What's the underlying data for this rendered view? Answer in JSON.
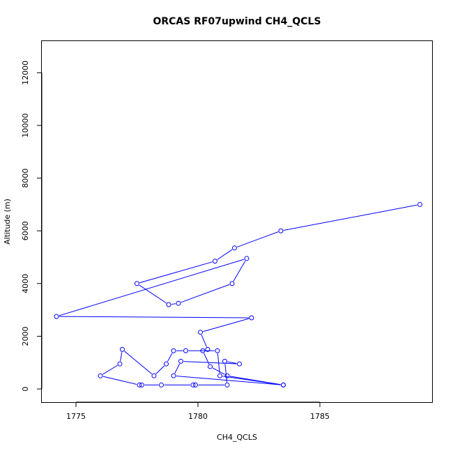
{
  "chart_data": {
    "type": "line",
    "title": "ORCAS RF07upwind CH4_QCLS",
    "xlabel": "CH4_QCLS",
    "ylabel": "Altitude (m)",
    "xlim": [
      1773.6,
      1789.6
    ],
    "ylim": [
      -500,
      13200
    ],
    "x_ticks": [
      1775,
      1780,
      1785
    ],
    "y_ticks": [
      0,
      2000,
      4000,
      6000,
      8000,
      10000,
      12000
    ],
    "series_color": "#0000ff",
    "markers": "open-circle",
    "points": [
      {
        "x": 1789.1,
        "y": 7000
      },
      {
        "x": 1783.4,
        "y": 6000
      },
      {
        "x": 1781.5,
        "y": 5350
      },
      {
        "x": 1780.7,
        "y": 4850
      },
      {
        "x": 1777.5,
        "y": 4000
      },
      {
        "x": 1778.8,
        "y": 3200
      },
      {
        "x": 1779.2,
        "y": 3250
      },
      {
        "x": 1781.4,
        "y": 4000
      },
      {
        "x": 1782.0,
        "y": 4950
      },
      {
        "x": 1774.2,
        "y": 2750
      },
      {
        "x": 1782.2,
        "y": 2700
      },
      {
        "x": 1780.1,
        "y": 2150
      },
      {
        "x": 1780.4,
        "y": 1500
      },
      {
        "x": 1780.2,
        "y": 1450
      },
      {
        "x": 1780.5,
        "y": 850
      },
      {
        "x": 1781.2,
        "y": 500
      },
      {
        "x": 1783.5,
        "y": 150
      },
      {
        "x": 1780.9,
        "y": 500
      },
      {
        "x": 1780.8,
        "y": 1450
      },
      {
        "x": 1779.5,
        "y": 1450
      },
      {
        "x": 1779.0,
        "y": 1450
      },
      {
        "x": 1778.7,
        "y": 950
      },
      {
        "x": 1778.2,
        "y": 500
      },
      {
        "x": 1776.9,
        "y": 1500
      },
      {
        "x": 1776.8,
        "y": 950
      },
      {
        "x": 1776.0,
        "y": 500
      },
      {
        "x": 1777.6,
        "y": 150
      },
      {
        "x": 1777.7,
        "y": 150
      },
      {
        "x": 1778.5,
        "y": 150
      },
      {
        "x": 1779.8,
        "y": 150
      },
      {
        "x": 1779.9,
        "y": 150
      },
      {
        "x": 1781.2,
        "y": 150
      },
      {
        "x": 1781.1,
        "y": 1050
      },
      {
        "x": 1781.7,
        "y": 950
      },
      {
        "x": 1779.3,
        "y": 1050
      },
      {
        "x": 1779.0,
        "y": 500
      },
      {
        "x": 1783.5,
        "y": 150
      }
    ]
  }
}
